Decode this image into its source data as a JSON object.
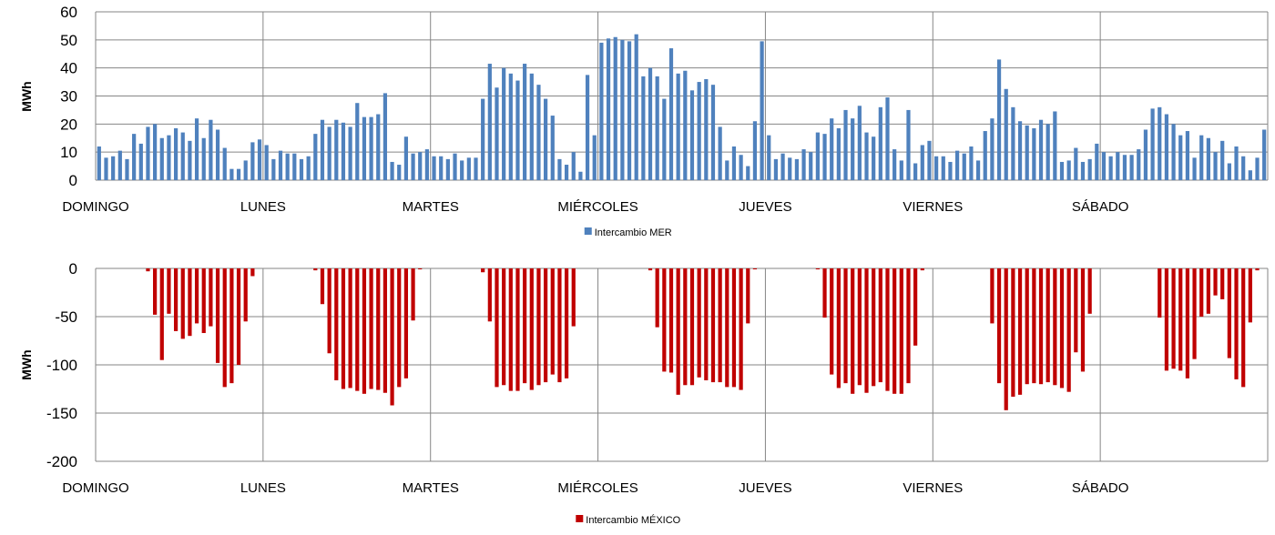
{
  "chart_data": [
    {
      "type": "bar",
      "ylabel": "MWh",
      "ylim": [
        0,
        60
      ],
      "y_ticks": [
        "0",
        "10",
        "20",
        "30",
        "40",
        "50",
        "60"
      ],
      "y_tick_values": [
        0,
        10,
        20,
        30,
        40,
        50,
        60
      ],
      "day_labels": [
        "DOMINGO",
        "LUNES",
        "MARTES",
        "MIÉRCOLES",
        "JUEVES",
        "VIERNES",
        "SÁBADO"
      ],
      "grid": true,
      "legend_position": "bottom-center",
      "series": [
        {
          "name": "Intercambio MER",
          "color": "#4F81BD",
          "values": [
            12,
            8,
            8.5,
            10.5,
            7.5,
            16.5,
            13,
            19,
            20,
            15,
            16,
            18.5,
            17,
            14,
            22,
            15,
            21.5,
            18,
            11.5,
            4,
            4,
            7,
            13.5,
            14.5,
            12.5,
            7.5,
            10.5,
            9.5,
            9.5,
            7.5,
            8.5,
            16.5,
            21.5,
            19,
            21.5,
            20.5,
            19,
            27.5,
            22.5,
            22.5,
            23.5,
            31,
            6.5,
            5.5,
            15.5,
            9.5,
            10,
            11,
            8.5,
            8.5,
            7.5,
            9.5,
            7,
            8,
            8,
            29,
            41.5,
            33,
            40,
            38,
            35.5,
            41.5,
            38,
            34,
            29,
            23,
            7.5,
            5.5,
            10,
            3,
            37.5,
            16,
            49,
            50.5,
            51,
            50,
            49.5,
            52,
            37,
            40,
            37,
            29,
            47,
            38,
            39,
            32,
            35,
            36,
            34,
            19,
            7,
            12,
            9,
            5,
            21,
            49.5,
            16,
            7.5,
            9.5,
            8,
            7.5,
            11,
            10,
            17,
            16.5,
            22,
            18.5,
            25,
            22,
            26.5,
            17,
            15.5,
            26,
            29.5,
            11,
            7,
            25,
            6,
            12.5,
            14,
            8.5,
            8.5,
            6.5,
            10.5,
            9.5,
            12,
            7,
            17.5,
            22,
            43,
            32.5,
            26,
            21,
            19.5,
            18.5,
            21.5,
            20,
            24.5,
            6.5,
            7,
            11.5,
            6.5,
            7.5,
            13,
            10,
            8.5,
            10,
            9,
            9,
            11,
            18,
            25.5,
            26,
            23.5,
            20,
            16,
            17.5,
            8,
            16,
            15,
            10,
            14,
            6,
            12,
            8.5,
            3.5,
            8,
            18
          ]
        }
      ]
    },
    {
      "type": "bar",
      "ylabel": "MWh",
      "ylim": [
        -200,
        0
      ],
      "y_ticks": [
        "0",
        "-50",
        "-100",
        "-150",
        "-200"
      ],
      "y_tick_values": [
        0,
        -50,
        -100,
        -150,
        -200
      ],
      "day_labels": [
        "DOMINGO",
        "LUNES",
        "MARTES",
        "MIÉRCOLES",
        "JUEVES",
        "VIERNES",
        "SÁBADO"
      ],
      "grid": true,
      "legend_position": "bottom-center",
      "series": [
        {
          "name": "Intercambio MÉXICO",
          "color": "#C00000",
          "values": [
            0,
            0,
            0,
            0,
            0,
            0,
            0,
            -3,
            -48,
            -95,
            -47,
            -65,
            -73,
            -70,
            -57,
            -67,
            -60,
            -98,
            -123,
            -119,
            -100,
            -55,
            -8,
            0,
            0,
            0,
            0,
            0,
            0,
            0,
            0,
            -2,
            -37,
            -88,
            -116,
            -125,
            -124,
            -127,
            -130,
            -125,
            -126,
            -129,
            -142,
            -123,
            -114,
            -54,
            -1,
            0,
            0,
            0,
            0,
            0,
            0,
            0,
            0,
            -4,
            -55,
            -123,
            -121,
            -127,
            -127,
            -119,
            -126,
            -121,
            -118,
            -110,
            -118,
            -114,
            -60,
            0,
            0,
            0,
            0,
            0,
            0,
            0,
            0,
            0,
            0,
            -2,
            -61,
            -107,
            -108,
            -131,
            -121,
            -121,
            -113,
            -116,
            -118,
            -118,
            -123,
            -123,
            -126,
            -57,
            -1,
            0,
            0,
            0,
            0,
            0,
            0,
            0,
            0,
            -1,
            -51,
            -110,
            -124,
            -119,
            -130,
            -121,
            -129,
            -122,
            -118,
            -127,
            -130,
            -130,
            -119,
            -80,
            -2,
            0,
            0,
            0,
            0,
            0,
            0,
            0,
            0,
            0,
            -57,
            -119,
            -147,
            -133,
            -131,
            -120,
            -119,
            -120,
            -118,
            -121,
            -124,
            -128,
            -87,
            -107,
            -47,
            0,
            0,
            0,
            0,
            0,
            0,
            0,
            0,
            0,
            -51,
            -106,
            -104,
            -106,
            -114,
            -94,
            -50,
            -47,
            -28,
            -32,
            -93,
            -115,
            -123,
            -56,
            -2,
            0
          ]
        }
      ]
    }
  ]
}
